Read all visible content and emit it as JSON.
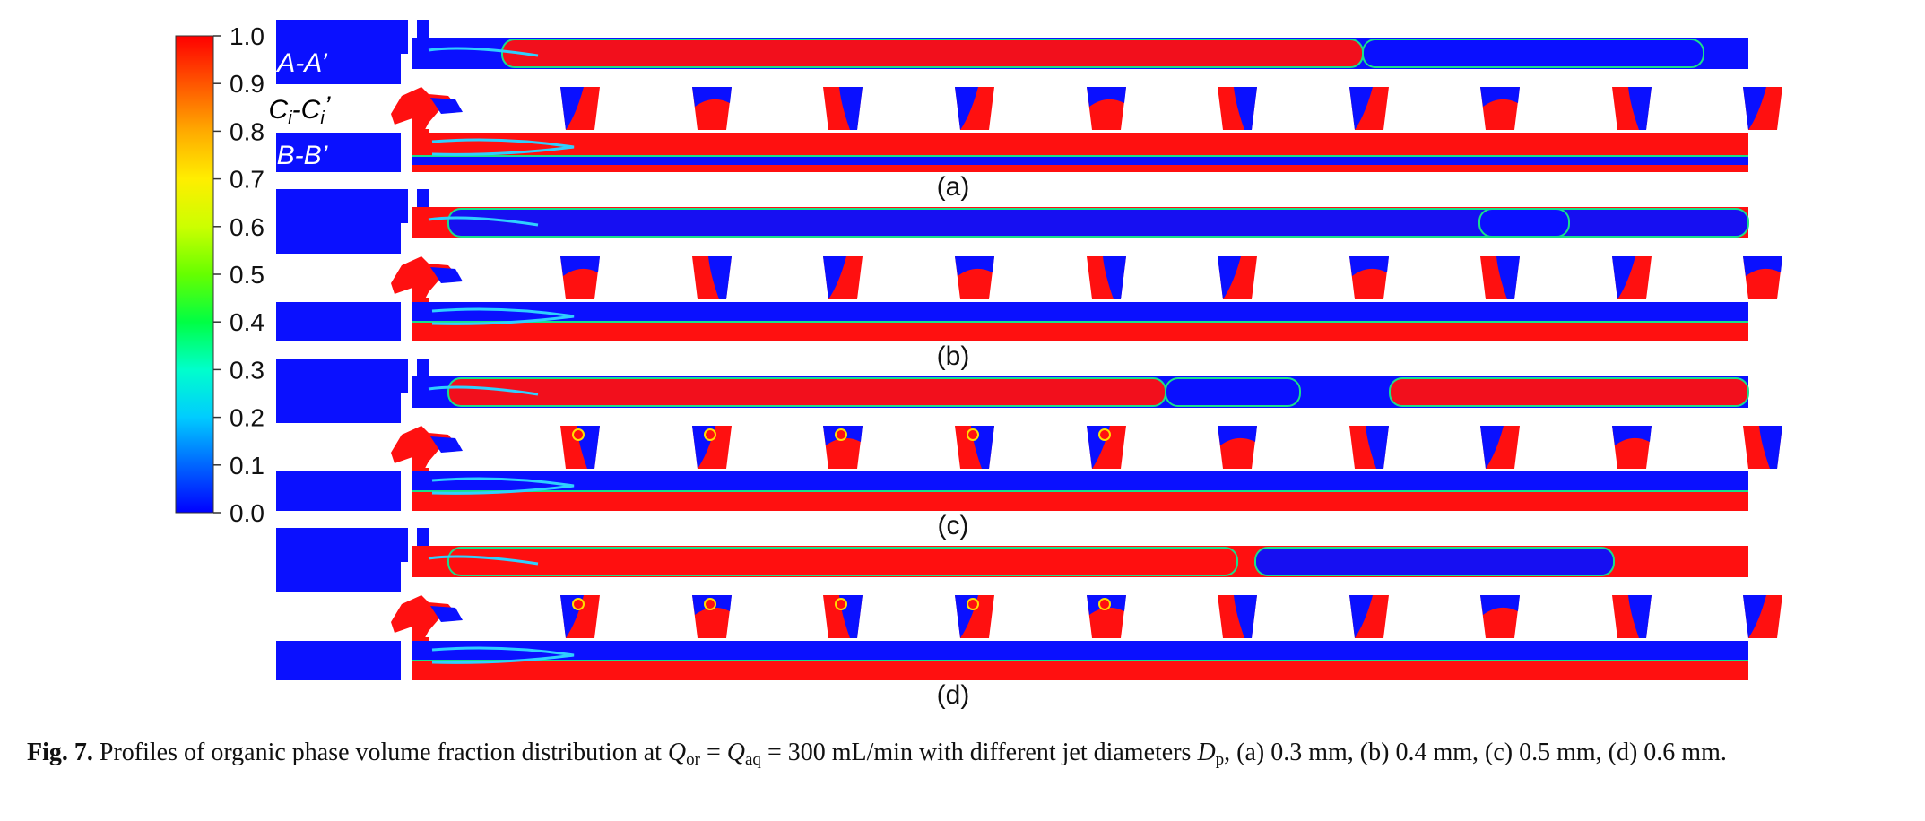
{
  "colorbar": {
    "ticks": [
      "1.0",
      "0.9",
      "0.8",
      "0.7",
      "0.6",
      "0.5",
      "0.4",
      "0.3",
      "0.2",
      "0.1",
      "0.0"
    ],
    "stops": [
      "#0000ff",
      "#0066ff",
      "#00ccff",
      "#00ffcc",
      "#00ff44",
      "#66ff00",
      "#ccff00",
      "#ffee00",
      "#ffaa00",
      "#ff5500",
      "#ff0000"
    ]
  },
  "section_labels": {
    "a": "A-A’",
    "b": "B-B’",
    "c_pre": "C",
    "c_sub1": "i",
    "c_mid": "-C",
    "c_sub2": "i",
    "c_post": "’"
  },
  "panels": [
    {
      "id": "a",
      "label": "(a)"
    },
    {
      "id": "b",
      "label": "(b)"
    },
    {
      "id": "c",
      "label": "(c)"
    },
    {
      "id": "d",
      "label": "(d)"
    }
  ],
  "caption": {
    "fig": "Fig. 7.",
    "t1": "Profiles of organic phase volume fraction distribution at",
    "q": "Q",
    "or": "or",
    "eq1": " = ",
    "aq": "aq",
    "t2": " = 300 mL/min with different jet diameters",
    "d": "D",
    "p": "p",
    "t3": ", (a) 0.3 mm, (b) 0.4 mm, (c) 0.5 mm, (d) 0.6 mm."
  }
}
